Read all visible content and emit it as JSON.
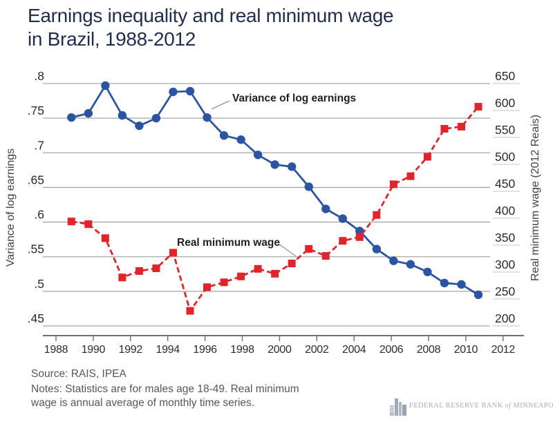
{
  "title": {
    "line1": "Earnings inequality and real minimum wage",
    "line2": "in Brazil, 1988-2012"
  },
  "chart_data": {
    "type": "line",
    "title": "Earnings inequality and real minimum wage in Brazil, 1988-2012",
    "x": [
      1988,
      1989,
      1990,
      1991,
      1992,
      1993,
      1994,
      1995,
      1996,
      1997,
      1998,
      1999,
      2000,
      2001,
      2002,
      2003,
      2004,
      2005,
      2006,
      2007,
      2008,
      2009,
      2010,
      2011,
      2012
    ],
    "series": [
      {
        "name": "Variance of log earnings",
        "axis": "left",
        "marker": "circle",
        "line_style": "solid",
        "color": "#2b55a2",
        "values": [
          0.751,
          0.757,
          0.797,
          0.754,
          0.739,
          0.75,
          0.788,
          0.789,
          0.751,
          0.725,
          0.719,
          0.697,
          0.683,
          0.68,
          0.651,
          0.619,
          0.605,
          0.587,
          0.561,
          0.544,
          0.539,
          0.528,
          0.512,
          0.51,
          0.495
        ]
      },
      {
        "name": "Real minimum wage",
        "axis": "right",
        "marker": "square",
        "line_style": "dashed",
        "color": "#e2232a",
        "values": [
          394,
          389,
          363,
          290,
          302,
          307,
          336,
          228,
          272,
          281,
          292,
          306,
          297,
          316,
          343,
          330,
          358,
          365,
          406,
          463,
          478,
          514,
          566,
          570,
          607
        ]
      }
    ],
    "left_axis": {
      "label": "Variance of log earnings",
      "range": [
        0.45,
        0.8
      ],
      "tick_labels": [
        ".8",
        ".75",
        ".7",
        ".65",
        ".6",
        ".55",
        ".5",
        ".45"
      ],
      "tick_values": [
        0.8,
        0.75,
        0.7,
        0.65,
        0.6,
        0.55,
        0.5,
        0.45
      ],
      "grid": true
    },
    "right_axis": {
      "label": "Real minimum wage (2012 Reais)",
      "range": [
        200,
        650
      ],
      "tick_labels": [
        "650",
        "600",
        "550",
        "500",
        "450",
        "400",
        "350",
        "300",
        "250",
        "200"
      ],
      "tick_values": [
        650,
        600,
        550,
        500,
        450,
        400,
        350,
        300,
        250,
        200
      ],
      "grid": false
    },
    "x_axis": {
      "tick_labels": [
        "1988",
        "1990",
        "1992",
        "1994",
        "1996",
        "1998",
        "2000",
        "2002",
        "2004",
        "2006",
        "2008",
        "2010",
        "2012"
      ],
      "tick_values": [
        1988,
        1990,
        1992,
        1994,
        1996,
        1998,
        2000,
        2002,
        2004,
        2006,
        2008,
        2010,
        2012
      ]
    },
    "annotations": [
      {
        "text": "Variance of log earnings",
        "target_series": "Variance of log earnings"
      },
      {
        "text": "Real minimum wage",
        "target_series": "Real minimum wage"
      }
    ],
    "legend_position": "inline-annotations",
    "grid_orientation": "horizontal"
  },
  "footer": {
    "source": "Source: RAIS, IPEA",
    "notes_line1": "Notes: Statistics are for males age 18-49. Real minimum",
    "notes_line2": "wage is annual average of monthly time series."
  },
  "logo": {
    "bank": "FEDERAL RESERVE BANK",
    "of": "of",
    "city": "MINNEAPOLIS"
  },
  "colors": {
    "title": "#1f2d4e",
    "blue_series": "#2b55a2",
    "red_series": "#e2232a",
    "gridline": "#a6a6a6",
    "axis_line": "#6d6e71",
    "tick_text": "#2a2b2d",
    "axis_label_text": "#414042",
    "annotation_text": "#231f20",
    "annotation_pointer": "#939598",
    "right_tick_underline": "#d9d9d9",
    "footer_text": "#55575b",
    "logo": "#a3aebc"
  }
}
